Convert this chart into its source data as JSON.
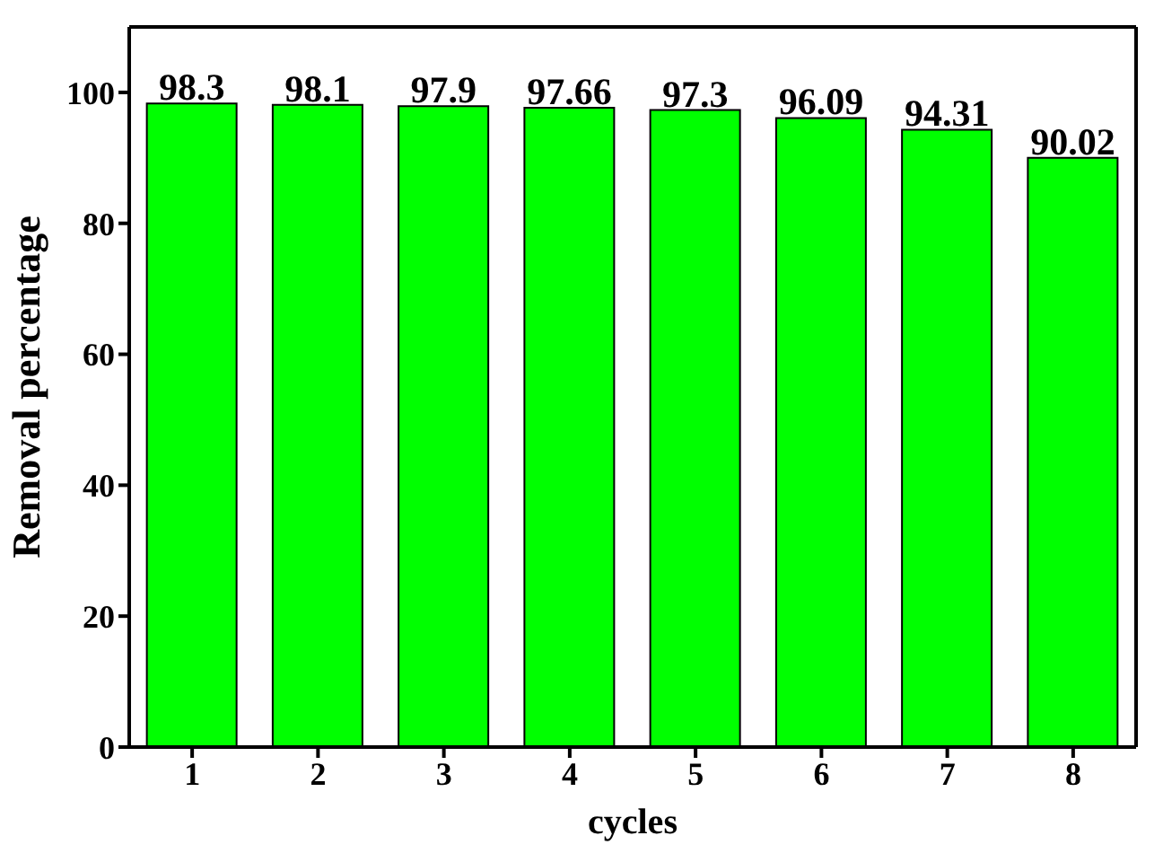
{
  "chart_data": {
    "type": "bar",
    "xlabel": "cycles",
    "ylabel": "Removal percentage",
    "categories": [
      "1",
      "2",
      "3",
      "4",
      "5",
      "6",
      "7",
      "8"
    ],
    "values": [
      98.3,
      98.1,
      97.9,
      97.66,
      97.3,
      96.09,
      94.31,
      90.02
    ],
    "color": "#00ff00",
    "data_labels": true,
    "ylim": [
      0,
      110
    ],
    "yticks": [
      0,
      20,
      40,
      60,
      80,
      100
    ],
    "grid": false
  }
}
